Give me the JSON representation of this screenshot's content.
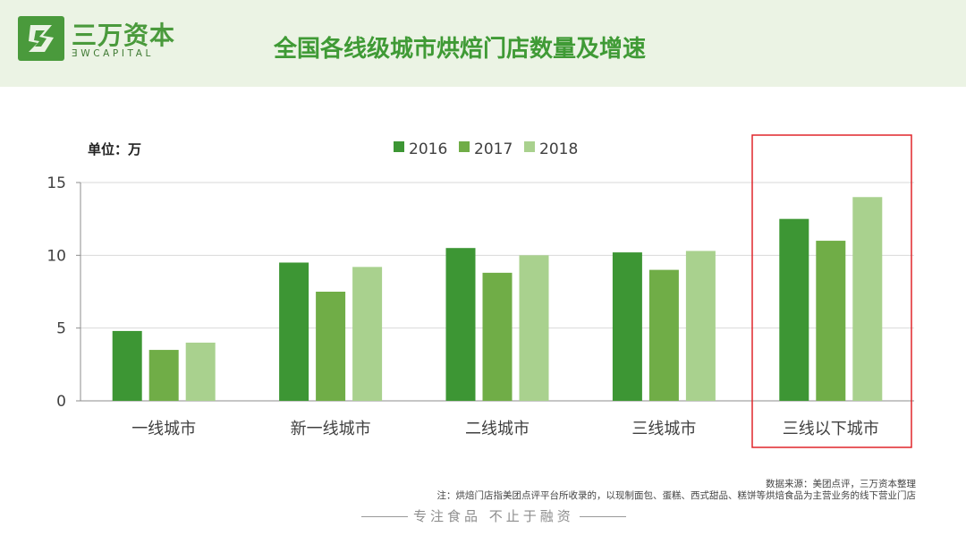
{
  "brand": {
    "name_cn": "三万资本",
    "name_en": "ƎWCAPITAL"
  },
  "page": {
    "title": "全国各线级城市烘焙门店数量及增速",
    "unit_label": "单位：万"
  },
  "footer": {
    "source": "数据来源：美团点评，三万资本整理",
    "note": "注：烘焙门店指美团点评平台所收录的，以现制面包、蛋糕、西式甜品、糕饼等烘焙食品为主营业务的线下营业门店",
    "slogan": "专注食品  不止于融资"
  },
  "chart_data": {
    "type": "bar",
    "categories": [
      "一线城市",
      "新一线城市",
      "二线城市",
      "三线城市",
      "三线以下城市"
    ],
    "series": [
      {
        "name": "2016",
        "values": [
          4.8,
          9.5,
          10.5,
          10.2,
          12.5
        ],
        "color": "#3d9634"
      },
      {
        "name": "2017",
        "values": [
          3.5,
          7.5,
          8.8,
          9.0,
          11.0
        ],
        "color": "#70ad47"
      },
      {
        "name": "2018",
        "values": [
          4.0,
          9.2,
          10.0,
          10.3,
          14.0
        ],
        "color": "#a9d18e"
      }
    ],
    "ylim": [
      0,
      15
    ],
    "yticks": [
      0,
      5,
      10,
      15
    ],
    "grid": true,
    "legend": "top-center",
    "highlight_category": "三线以下城市",
    "highlight_color": "#e0262b"
  }
}
